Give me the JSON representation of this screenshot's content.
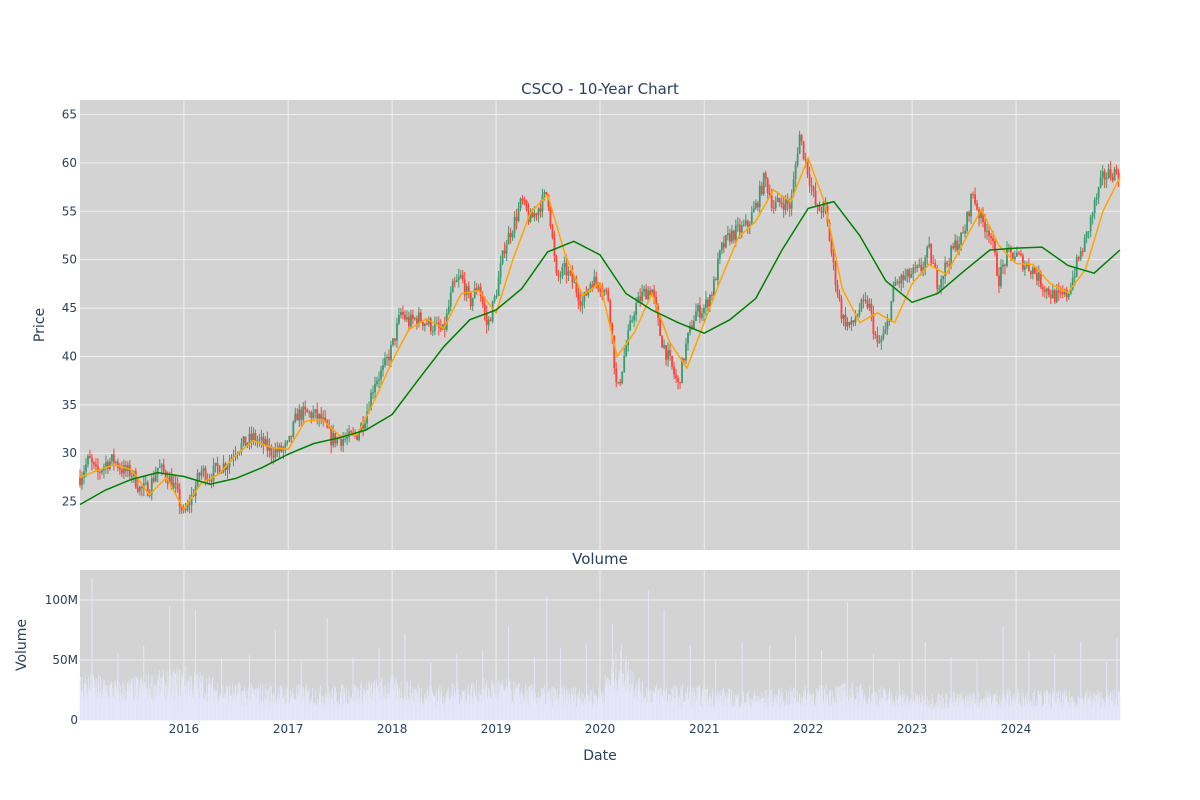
{
  "chart_data": [
    {
      "type": "candlestick",
      "title": "CSCO - 10-Year Chart",
      "ylabel": "Price",
      "xlim": [
        "2015-01-01",
        "2024-12-31"
      ],
      "ylim": [
        20,
        66.5
      ],
      "y_ticks": [
        25,
        30,
        35,
        40,
        45,
        50,
        55,
        60,
        65
      ],
      "x_ticks": [
        "2016",
        "2017",
        "2018",
        "2019",
        "2020",
        "2021",
        "2022",
        "2023",
        "2024"
      ],
      "grid": true,
      "legend": "none",
      "colors": {
        "background": "#d3d3d3",
        "up": "#3d9970",
        "down": "#ff4136",
        "ma_short": "#ffa500",
        "ma_long": "#008000",
        "grid": "#eeeeee"
      },
      "price_points": [
        [
          "2015-01-01",
          27.5
        ],
        [
          "2015-02-01",
          29.4
        ],
        [
          "2015-03-01",
          27.8
        ],
        [
          "2015-04-01",
          29.0
        ],
        [
          "2015-05-01",
          29.3
        ],
        [
          "2015-06-01",
          28.2
        ],
        [
          "2015-07-01",
          28.0
        ],
        [
          "2015-08-01",
          26.2
        ],
        [
          "2015-09-01",
          26.4
        ],
        [
          "2015-10-01",
          28.5
        ],
        [
          "2015-11-01",
          27.8
        ],
        [
          "2015-12-01",
          26.4
        ],
        [
          "2016-01-01",
          23.5
        ],
        [
          "2016-02-01",
          25.8
        ],
        [
          "2016-03-01",
          28.2
        ],
        [
          "2016-04-01",
          27.6
        ],
        [
          "2016-05-01",
          28.6
        ],
        [
          "2016-06-01",
          28.9
        ],
        [
          "2016-07-01",
          30.5
        ],
        [
          "2016-08-01",
          31.0
        ],
        [
          "2016-09-01",
          31.6
        ],
        [
          "2016-10-01",
          31.0
        ],
        [
          "2016-11-01",
          30.2
        ],
        [
          "2016-12-01",
          30.2
        ],
        [
          "2017-01-01",
          30.7
        ],
        [
          "2017-02-01",
          34.0
        ],
        [
          "2017-03-01",
          34.1
        ],
        [
          "2017-04-01",
          34.0
        ],
        [
          "2017-05-01",
          33.3
        ],
        [
          "2017-06-01",
          31.5
        ],
        [
          "2017-07-01",
          31.5
        ],
        [
          "2017-08-01",
          31.5
        ],
        [
          "2017-09-01",
          32.0
        ],
        [
          "2017-10-01",
          34.0
        ],
        [
          "2017-11-01",
          37.5
        ],
        [
          "2017-12-01",
          38.6
        ],
        [
          "2018-01-01",
          41.0
        ],
        [
          "2018-02-01",
          44.5
        ],
        [
          "2018-03-01",
          43.5
        ],
        [
          "2018-04-01",
          44.0
        ],
        [
          "2018-05-01",
          43.5
        ],
        [
          "2018-06-01",
          43.0
        ],
        [
          "2018-07-01",
          42.5
        ],
        [
          "2018-08-01",
          47.0
        ],
        [
          "2018-09-01",
          48.2
        ],
        [
          "2018-10-01",
          45.5
        ],
        [
          "2018-11-01",
          47.5
        ],
        [
          "2018-12-01",
          43.0
        ],
        [
          "2019-01-01",
          46.5
        ],
        [
          "2019-02-01",
          51.5
        ],
        [
          "2019-03-01",
          53.5
        ],
        [
          "2019-04-01",
          56.0
        ],
        [
          "2019-05-01",
          54.0
        ],
        [
          "2019-06-01",
          55.5
        ],
        [
          "2019-07-01",
          57.0
        ],
        [
          "2019-08-01",
          48.0
        ],
        [
          "2019-09-01",
          49.0
        ],
        [
          "2019-10-01",
          47.5
        ],
        [
          "2019-11-01",
          45.5
        ],
        [
          "2019-12-01",
          47.9
        ],
        [
          "2020-01-01",
          47.5
        ],
        [
          "2020-02-01",
          46.0
        ],
        [
          "2020-03-01",
          36.0
        ],
        [
          "2020-04-01",
          41.0
        ],
        [
          "2020-05-01",
          45.0
        ],
        [
          "2020-06-01",
          46.5
        ],
        [
          "2020-07-01",
          47.0
        ],
        [
          "2020-08-01",
          42.0
        ],
        [
          "2020-09-01",
          39.5
        ],
        [
          "2020-10-01",
          37.0
        ],
        [
          "2020-11-01",
          41.5
        ],
        [
          "2020-12-01",
          44.5
        ],
        [
          "2021-01-01",
          45.0
        ],
        [
          "2021-02-01",
          47.0
        ],
        [
          "2021-03-01",
          51.0
        ],
        [
          "2021-04-01",
          52.5
        ],
        [
          "2021-05-01",
          53.0
        ],
        [
          "2021-06-01",
          53.5
        ],
        [
          "2021-07-01",
          55.5
        ],
        [
          "2021-08-01",
          58.5
        ],
        [
          "2021-09-01",
          55.5
        ],
        [
          "2021-10-01",
          56.0
        ],
        [
          "2021-11-01",
          55.5
        ],
        [
          "2021-12-01",
          63.0
        ],
        [
          "2022-01-01",
          59.0
        ],
        [
          "2022-02-01",
          55.0
        ],
        [
          "2022-03-01",
          55.5
        ],
        [
          "2022-04-01",
          49.0
        ],
        [
          "2022-05-01",
          44.0
        ],
        [
          "2022-06-01",
          43.0
        ],
        [
          "2022-07-01",
          45.0
        ],
        [
          "2022-08-01",
          45.5
        ],
        [
          "2022-09-01",
          41.0
        ],
        [
          "2022-10-01",
          42.5
        ],
        [
          "2022-11-01",
          47.5
        ],
        [
          "2022-12-01",
          48.0
        ],
        [
          "2023-01-01",
          48.5
        ],
        [
          "2023-02-01",
          49.0
        ],
        [
          "2023-03-01",
          51.0
        ],
        [
          "2023-04-01",
          47.5
        ],
        [
          "2023-05-01",
          49.5
        ],
        [
          "2023-06-01",
          51.5
        ],
        [
          "2023-07-01",
          52.5
        ],
        [
          "2023-08-01",
          57.0
        ],
        [
          "2023-09-01",
          54.0
        ],
        [
          "2023-10-01",
          53.0
        ],
        [
          "2023-11-01",
          48.0
        ],
        [
          "2023-12-01",
          50.5
        ],
        [
          "2024-01-01",
          50.5
        ],
        [
          "2024-02-01",
          49.5
        ],
        [
          "2024-03-01",
          49.0
        ],
        [
          "2024-04-01",
          47.5
        ],
        [
          "2024-05-01",
          46.5
        ],
        [
          "2024-06-01",
          46.0
        ],
        [
          "2024-07-01",
          46.5
        ],
        [
          "2024-08-01",
          49.5
        ],
        [
          "2024-09-01",
          52.0
        ],
        [
          "2024-10-01",
          55.5
        ],
        [
          "2024-11-01",
          58.5
        ],
        [
          "2024-12-01",
          59.0
        ]
      ],
      "ma_short": [
        [
          "2015-01-01",
          27.5
        ],
        [
          "2015-03-01",
          28.2
        ],
        [
          "2015-05-01",
          28.8
        ],
        [
          "2015-07-01",
          28.3
        ],
        [
          "2015-09-01",
          25.7
        ],
        [
          "2015-11-01",
          27.5
        ],
        [
          "2016-01-01",
          24.2
        ],
        [
          "2016-03-01",
          26.9
        ],
        [
          "2016-05-01",
          27.8
        ],
        [
          "2016-07-01",
          29.8
        ],
        [
          "2016-09-01",
          31.3
        ],
        [
          "2016-11-01",
          30.6
        ],
        [
          "2017-01-01",
          30.4
        ],
        [
          "2017-03-01",
          33.3
        ],
        [
          "2017-05-01",
          33.5
        ],
        [
          "2017-07-01",
          31.8
        ],
        [
          "2017-09-01",
          31.9
        ],
        [
          "2017-11-01",
          35.5
        ],
        [
          "2018-01-01",
          39.5
        ],
        [
          "2018-03-01",
          42.8
        ],
        [
          "2018-05-01",
          43.9
        ],
        [
          "2018-07-01",
          42.9
        ],
        [
          "2018-09-01",
          46.5
        ],
        [
          "2018-11-01",
          46.8
        ],
        [
          "2019-01-01",
          44.5
        ],
        [
          "2019-03-01",
          50.0
        ],
        [
          "2019-05-01",
          54.8
        ],
        [
          "2019-07-01",
          56.7
        ],
        [
          "2019-09-01",
          50.5
        ],
        [
          "2019-11-01",
          46.3
        ],
        [
          "2020-01-01",
          47.6
        ],
        [
          "2020-03-01",
          40.0
        ],
        [
          "2020-05-01",
          42.5
        ],
        [
          "2020-07-01",
          46.5
        ],
        [
          "2020-09-01",
          41.5
        ],
        [
          "2020-11-01",
          38.8
        ],
        [
          "2021-01-01",
          43.5
        ],
        [
          "2021-03-01",
          48.0
        ],
        [
          "2021-05-01",
          52.3
        ],
        [
          "2021-07-01",
          54.0
        ],
        [
          "2021-09-01",
          57.2
        ],
        [
          "2021-11-01",
          56.0
        ],
        [
          "2022-01-01",
          60.5
        ],
        [
          "2022-03-01",
          55.8
        ],
        [
          "2022-05-01",
          47.0
        ],
        [
          "2022-07-01",
          43.5
        ],
        [
          "2022-09-01",
          44.5
        ],
        [
          "2022-11-01",
          43.5
        ],
        [
          "2023-01-01",
          47.5
        ],
        [
          "2023-03-01",
          49.5
        ],
        [
          "2023-05-01",
          48.5
        ],
        [
          "2023-07-01",
          51.8
        ],
        [
          "2023-09-01",
          55.2
        ],
        [
          "2023-11-01",
          51.5
        ],
        [
          "2024-01-01",
          49.6
        ],
        [
          "2024-03-01",
          49.5
        ],
        [
          "2024-05-01",
          47.5
        ],
        [
          "2024-07-01",
          46.6
        ],
        [
          "2024-09-01",
          49.0
        ],
        [
          "2024-11-01",
          55.0
        ],
        [
          "2024-12-31",
          58.5
        ]
      ],
      "ma_long": [
        [
          "2015-01-01",
          24.7
        ],
        [
          "2015-04-01",
          26.2
        ],
        [
          "2015-07-01",
          27.3
        ],
        [
          "2015-10-01",
          28.0
        ],
        [
          "2016-01-01",
          27.6
        ],
        [
          "2016-04-01",
          26.8
        ],
        [
          "2016-07-01",
          27.4
        ],
        [
          "2016-10-01",
          28.5
        ],
        [
          "2017-01-01",
          29.9
        ],
        [
          "2017-04-01",
          31.0
        ],
        [
          "2017-07-01",
          31.6
        ],
        [
          "2017-10-01",
          32.4
        ],
        [
          "2018-01-01",
          34.0
        ],
        [
          "2018-04-01",
          37.5
        ],
        [
          "2018-07-01",
          41.0
        ],
        [
          "2018-10-01",
          43.8
        ],
        [
          "2019-01-01",
          44.8
        ],
        [
          "2019-04-01",
          47.0
        ],
        [
          "2019-07-01",
          50.8
        ],
        [
          "2019-10-01",
          51.9
        ],
        [
          "2020-01-01",
          50.5
        ],
        [
          "2020-04-01",
          46.5
        ],
        [
          "2020-07-01",
          44.8
        ],
        [
          "2020-10-01",
          43.5
        ],
        [
          "2021-01-01",
          42.4
        ],
        [
          "2021-04-01",
          43.8
        ],
        [
          "2021-07-01",
          46.0
        ],
        [
          "2021-10-01",
          51.0
        ],
        [
          "2022-01-01",
          55.3
        ],
        [
          "2022-04-01",
          56.0
        ],
        [
          "2022-07-01",
          52.5
        ],
        [
          "2022-10-01",
          47.8
        ],
        [
          "2023-01-01",
          45.6
        ],
        [
          "2023-04-01",
          46.5
        ],
        [
          "2023-07-01",
          48.8
        ],
        [
          "2023-10-01",
          51.0
        ],
        [
          "2024-01-01",
          51.2
        ],
        [
          "2024-04-01",
          51.3
        ],
        [
          "2024-07-01",
          49.4
        ],
        [
          "2024-10-01",
          48.6
        ],
        [
          "2024-12-31",
          51.0
        ]
      ]
    },
    {
      "type": "bar",
      "title": "Volume",
      "xlabel": "Date",
      "ylabel": "Volume",
      "ylim": [
        0,
        125000000
      ],
      "y_ticks": [
        0,
        50000000,
        100000000
      ],
      "y_tick_labels": [
        "0",
        "50M",
        "100M"
      ],
      "x_ticks": [
        "2016",
        "2017",
        "2018",
        "2019",
        "2020",
        "2021",
        "2022",
        "2023",
        "2024"
      ],
      "bar_color": "#e6e6fa",
      "volume_baseline": [
        [
          "2015-01-01",
          28000000
        ],
        [
          "2015-06-01",
          24000000
        ],
        [
          "2016-01-01",
          32000000
        ],
        [
          "2016-06-01",
          22000000
        ],
        [
          "2017-01-01",
          21000000
        ],
        [
          "2017-06-01",
          20000000
        ],
        [
          "2018-01-01",
          26000000
        ],
        [
          "2018-06-01",
          20000000
        ],
        [
          "2019-01-01",
          25000000
        ],
        [
          "2019-06-01",
          20000000
        ],
        [
          "2020-01-01",
          20000000
        ],
        [
          "2020-03-15",
          45000000
        ],
        [
          "2020-06-01",
          22000000
        ],
        [
          "2021-01-01",
          20000000
        ],
        [
          "2021-06-01",
          17000000
        ],
        [
          "2022-01-01",
          20000000
        ],
        [
          "2022-06-01",
          22000000
        ],
        [
          "2023-01-01",
          17000000
        ],
        [
          "2023-06-01",
          16000000
        ],
        [
          "2024-01-01",
          19000000
        ],
        [
          "2024-06-01",
          17000000
        ],
        [
          "2024-12-31",
          18000000
        ]
      ],
      "volume_spikes": [
        [
          "2015-02-12",
          118000000
        ],
        [
          "2015-05-14",
          55000000
        ],
        [
          "2015-08-13",
          62000000
        ],
        [
          "2015-11-12",
          95000000
        ],
        [
          "2016-02-11",
          91000000
        ],
        [
          "2016-05-12",
          52000000
        ],
        [
          "2016-08-18",
          54000000
        ],
        [
          "2016-11-17",
          75000000
        ],
        [
          "2017-02-16",
          50000000
        ],
        [
          "2017-05-18",
          85000000
        ],
        [
          "2017-08-17",
          52000000
        ],
        [
          "2017-11-16",
          60000000
        ],
        [
          "2018-02-15",
          72000000
        ],
        [
          "2018-05-17",
          48000000
        ],
        [
          "2018-08-16",
          55000000
        ],
        [
          "2018-11-15",
          58000000
        ],
        [
          "2019-02-14",
          78000000
        ],
        [
          "2019-05-16",
          52000000
        ],
        [
          "2019-06-28",
          103000000
        ],
        [
          "2019-08-15",
          60000000
        ],
        [
          "2019-11-14",
          64000000
        ],
        [
          "2020-02-13",
          80000000
        ],
        [
          "2020-06-19",
          108000000
        ],
        [
          "2020-08-13",
          92000000
        ],
        [
          "2020-11-13",
          62000000
        ],
        [
          "2021-02-10",
          50000000
        ],
        [
          "2021-05-14",
          65000000
        ],
        [
          "2021-08-19",
          62000000
        ],
        [
          "2021-11-18",
          70000000
        ],
        [
          "2022-02-17",
          58000000
        ],
        [
          "2022-05-19",
          98000000
        ],
        [
          "2022-08-18",
          55000000
        ],
        [
          "2022-11-17",
          48000000
        ],
        [
          "2023-02-16",
          65000000
        ],
        [
          "2023-05-18",
          52000000
        ],
        [
          "2023-08-17",
          50000000
        ],
        [
          "2023-11-16",
          78000000
        ],
        [
          "2024-02-15",
          58000000
        ],
        [
          "2024-05-16",
          55000000
        ],
        [
          "2024-08-15",
          65000000
        ],
        [
          "2024-11-14",
          48000000
        ],
        [
          "2024-12-20",
          68000000
        ]
      ]
    }
  ]
}
